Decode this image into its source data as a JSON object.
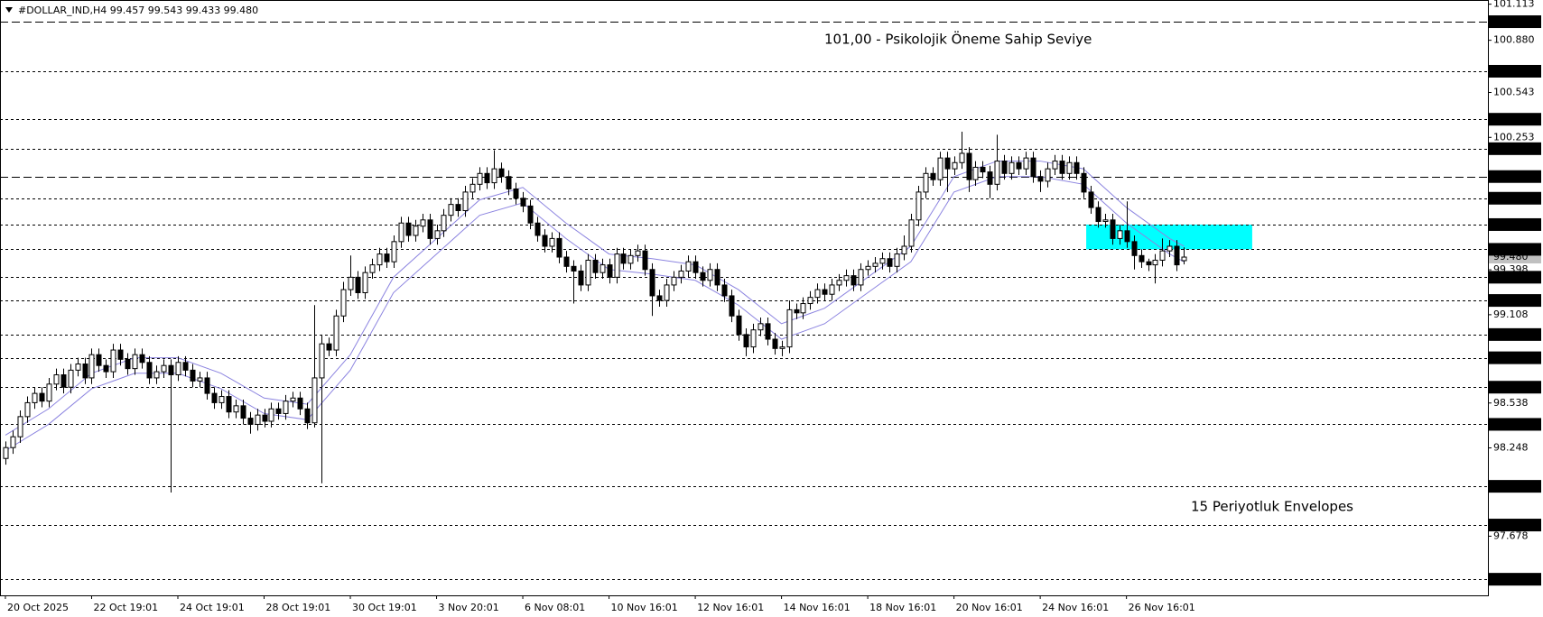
{
  "chart_data": {
    "type": "candlestick",
    "title": "#DOLLAR_IND,H4  99.457 99.543 99.433 99.480",
    "annotations": [
      {
        "text": "101,00 -  Psikolojik Öneme Sahip Seviye",
        "color": "#1a1a8c"
      },
      {
        "text": "15 Periyotluk Envelopes",
        "color": "#4b4ba8"
      }
    ],
    "xlim": [
      -0.75,
      206.3
    ],
    "ylim": [
      97.296,
      101.14
    ],
    "xticks": [
      {
        "value": 0,
        "label": "20 Oct 2025"
      },
      {
        "value": 12,
        "label": "22 Oct 19:01"
      },
      {
        "value": 24,
        "label": "24 Oct 19:01"
      },
      {
        "value": 36,
        "label": "28 Oct 19:01"
      },
      {
        "value": 48,
        "label": "30 Oct 19:01"
      },
      {
        "value": 60,
        "label": "3 Nov 20:01"
      },
      {
        "value": 72,
        "label": "6 Nov 08:01"
      },
      {
        "value": 84,
        "label": "10 Nov 16:01"
      },
      {
        "value": 96,
        "label": "12 Nov 16:01"
      },
      {
        "value": 108,
        "label": "14 Nov 16:01"
      },
      {
        "value": 120,
        "label": "18 Nov 16:01"
      },
      {
        "value": 132,
        "label": "20 Nov 16:01"
      },
      {
        "value": 144,
        "label": "24 Nov 16:01"
      },
      {
        "value": 156,
        "label": "26 Nov 16:01"
      }
    ],
    "yticks": [
      {
        "value": 101.113,
        "label": "101.113"
      },
      {
        "value": 100.88,
        "label": "100.880"
      },
      {
        "value": 100.543,
        "label": "100.543"
      },
      {
        "value": 100.253,
        "label": "100.253"
      },
      {
        "value": 99.398,
        "label": "99.398"
      },
      {
        "value": 99.108,
        "label": "99.108"
      },
      {
        "value": 98.538,
        "label": "98.538"
      },
      {
        "value": 98.248,
        "label": "98.248"
      },
      {
        "value": 97.678,
        "label": "97.678"
      }
    ],
    "levels": [
      {
        "value": 101,
        "label": "101.000",
        "dash": "long"
      },
      {
        "value": 100.68,
        "label": "100.680",
        "dash": "short"
      },
      {
        "value": 100.37,
        "label": "100.370",
        "dash": "short"
      },
      {
        "value": 100.18,
        "label": "100.180",
        "dash": "short"
      },
      {
        "value": 100,
        "label": "100.000",
        "dash": "long"
      },
      {
        "value": 99.86,
        "label": "99.860",
        "dash": "short"
      },
      {
        "value": 99.69,
        "label": "99.690",
        "dash": "short"
      },
      {
        "value": 99.53,
        "label": "99.530",
        "dash": "short"
      },
      {
        "value": 99.35,
        "label": "99.350",
        "dash": "short"
      },
      {
        "value": 99.2,
        "label": "99.200",
        "dash": "short"
      },
      {
        "value": 98.98,
        "label": "98.980",
        "dash": "short"
      },
      {
        "value": 98.83,
        "label": "98.830",
        "dash": "short"
      },
      {
        "value": 98.64,
        "label": "98.640",
        "dash": "short"
      },
      {
        "value": 98.4,
        "label": "98.400",
        "dash": "short"
      },
      {
        "value": 98,
        "label": "98.000",
        "dash": "short"
      },
      {
        "value": 97.75,
        "label": "97.750",
        "dash": "short"
      },
      {
        "value": 97.4,
        "label": "97.400",
        "dash": "short"
      }
    ],
    "last_price": {
      "value": 99.48,
      "label": "99.480",
      "color": "#c0c0c0"
    },
    "zone": {
      "from": 150.4,
      "to": 173.5,
      "top": 99.69,
      "bottom": 99.53,
      "color": "#00ffff"
    },
    "up_color": "#ffffff",
    "down_color": "#000000",
    "open": [
      98.18,
      98.25,
      98.32,
      98.45,
      98.54,
      98.6,
      98.55,
      98.66,
      98.72,
      98.64,
      98.75,
      98.79,
      98.7,
      98.85,
      98.78,
      98.74,
      98.88,
      98.82,
      98.76,
      98.85,
      98.8,
      98.7,
      98.74,
      98.78,
      98.72,
      98.8,
      98.75,
      98.68,
      98.7,
      98.6,
      98.54,
      98.58,
      98.48,
      98.52,
      98.44,
      98.4,
      98.46,
      98.42,
      98.5,
      98.47,
      98.55,
      98.57,
      98.5,
      98.41,
      98.7,
      98.92,
      98.88,
      99.1,
      99.27,
      99.35,
      99.25,
      99.38,
      99.43,
      99.5,
      99.45,
      99.58,
      99.7,
      99.62,
      99.68,
      99.72,
      99.6,
      99.65,
      99.75,
      99.82,
      99.78,
      99.9,
      99.95,
      100.02,
      99.96,
      100.05,
      100.0,
      99.92,
      99.86,
      99.81,
      99.7,
      99.62,
      99.55,
      99.6,
      99.48,
      99.42,
      99.39,
      99.3,
      99.46,
      99.38,
      99.43,
      99.35,
      99.5,
      99.44,
      99.49,
      99.52,
      99.4,
      99.23,
      99.2,
      99.3,
      99.35,
      99.39,
      99.45,
      99.38,
      99.33,
      99.4,
      99.3,
      99.23,
      99.1,
      98.98,
      98.9,
      99.01,
      99.05,
      98.95,
      98.89,
      98.9,
      99.14,
      99.12,
      99.18,
      99.22,
      99.27,
      99.24,
      99.3,
      99.33,
      99.36,
      99.3,
      99.4,
      99.42,
      99.44,
      99.47,
      99.42,
      99.5,
      99.55,
      99.72,
      99.9,
      100.02,
      99.98,
      100.12,
      100.05,
      100.09,
      100.15,
      99.98,
      100.06,
      100.03,
      99.95,
      100.1,
      100.02,
      100.09,
      100.05,
      100.12,
      100.0,
      99.97,
      100.05,
      100.1,
      100.02,
      100.09,
      100.02,
      99.9,
      99.8,
      99.71,
      99.72,
      99.6,
      99.65,
      99.58,
      99.49,
      99.45,
      99.43,
      99.46,
      99.52,
      99.55,
      99.457
    ],
    "high": [
      98.29,
      98.36,
      98.49,
      98.58,
      98.64,
      98.64,
      98.7,
      98.76,
      98.76,
      98.79,
      98.83,
      98.83,
      98.89,
      98.89,
      98.82,
      98.92,
      98.92,
      98.86,
      98.89,
      98.89,
      98.84,
      98.78,
      98.82,
      98.82,
      98.84,
      98.84,
      98.79,
      98.74,
      98.74,
      98.64,
      98.62,
      98.62,
      98.56,
      98.56,
      98.48,
      98.5,
      98.5,
      98.54,
      98.54,
      98.59,
      98.61,
      98.61,
      98.54,
      99.17,
      98.98,
      98.96,
      99.14,
      99.32,
      99.49,
      99.39,
      99.42,
      99.47,
      99.54,
      99.54,
      99.62,
      99.74,
      99.74,
      99.72,
      99.76,
      99.76,
      99.69,
      99.79,
      99.86,
      99.86,
      99.94,
      99.99,
      100.06,
      100.06,
      100.17,
      100.09,
      100.04,
      99.96,
      99.9,
      99.85,
      99.74,
      99.66,
      99.64,
      99.64,
      99.52,
      99.46,
      99.43,
      99.5,
      99.5,
      99.47,
      99.47,
      99.54,
      99.54,
      99.53,
      99.56,
      99.56,
      99.44,
      99.27,
      99.34,
      99.39,
      99.43,
      99.49,
      99.49,
      99.42,
      99.44,
      99.44,
      99.34,
      99.27,
      99.14,
      99.02,
      99.05,
      99.09,
      99.09,
      98.99,
      98.94,
      99.2,
      99.18,
      99.22,
      99.26,
      99.31,
      99.31,
      99.34,
      99.37,
      99.4,
      99.4,
      99.44,
      99.46,
      99.48,
      99.51,
      99.51,
      99.54,
      99.62,
      99.76,
      99.94,
      100.06,
      100.06,
      100.16,
      100.16,
      100.13,
      100.29,
      100.19,
      100.1,
      100.1,
      100.07,
      100.27,
      100.14,
      100.13,
      100.13,
      100.16,
      100.16,
      100.04,
      100.09,
      100.14,
      100.14,
      100.13,
      100.13,
      100.06,
      99.94,
      99.84,
      99.76,
      99.76,
      99.69,
      99.84,
      99.62,
      99.53,
      99.47,
      99.5,
      99.6,
      99.59,
      99.59,
      99.543
    ],
    "low": [
      98.14,
      98.21,
      98.28,
      98.41,
      98.5,
      98.51,
      98.51,
      98.62,
      98.6,
      98.6,
      98.71,
      98.66,
      98.66,
      98.74,
      98.7,
      98.7,
      98.78,
      98.72,
      98.72,
      98.76,
      98.66,
      98.66,
      98.7,
      97.96,
      98.68,
      98.71,
      98.64,
      98.64,
      98.56,
      98.5,
      98.5,
      98.44,
      98.44,
      98.4,
      98.34,
      98.36,
      98.38,
      98.38,
      98.43,
      98.43,
      98.51,
      98.46,
      98.37,
      98.38,
      98.02,
      98.84,
      98.84,
      99.06,
      99.23,
      99.21,
      99.21,
      99.34,
      99.39,
      99.41,
      99.41,
      99.54,
      99.58,
      99.58,
      99.64,
      99.56,
      99.56,
      99.61,
      99.71,
      99.74,
      99.74,
      99.86,
      99.91,
      99.92,
      99.92,
      99.96,
      99.88,
      99.82,
      99.77,
      99.66,
      99.58,
      99.51,
      99.51,
      99.44,
      99.38,
      99.18,
      99.26,
      99.26,
      99.34,
      99.34,
      99.31,
      99.31,
      99.4,
      99.4,
      99.45,
      99.36,
      99.1,
      99.16,
      99.16,
      99.26,
      99.31,
      99.35,
      99.34,
      99.29,
      99.29,
      99.26,
      99.19,
      99.06,
      98.94,
      98.84,
      98.86,
      98.97,
      98.91,
      98.85,
      98.84,
      98.86,
      99.08,
      99.08,
      99.14,
      99.18,
      99.2,
      99.2,
      99.26,
      99.29,
      99.26,
      99.26,
      99.36,
      99.38,
      99.4,
      99.38,
      99.38,
      99.46,
      99.51,
      99.68,
      99.86,
      99.94,
      99.94,
      99.9,
      100.01,
      100.05,
      99.9,
      99.94,
      99.99,
      99.86,
      99.91,
      99.98,
      99.98,
      100.01,
      100.01,
      99.96,
      99.9,
      99.93,
      100.01,
      99.98,
      99.98,
      99.98,
      99.86,
      99.76,
      99.67,
      99.67,
      99.56,
      99.56,
      99.54,
      99.4,
      99.41,
      99.39,
      99.31,
      99.42,
      99.48,
      99.39,
      99.433
    ],
    "close": [
      98.25,
      98.32,
      98.45,
      98.54,
      98.6,
      98.55,
      98.66,
      98.72,
      98.64,
      98.75,
      98.79,
      98.7,
      98.85,
      98.78,
      98.74,
      98.88,
      98.82,
      98.76,
      98.85,
      98.8,
      98.7,
      98.74,
      98.78,
      98.72,
      98.8,
      98.75,
      98.68,
      98.7,
      98.6,
      98.54,
      98.58,
      98.48,
      98.52,
      98.44,
      98.4,
      98.46,
      98.42,
      98.5,
      98.47,
      98.55,
      98.57,
      98.5,
      98.41,
      98.7,
      98.92,
      98.88,
      99.1,
      99.27,
      99.35,
      99.25,
      99.38,
      99.43,
      99.5,
      99.45,
      99.58,
      99.7,
      99.62,
      99.68,
      99.72,
      99.6,
      99.65,
      99.75,
      99.82,
      99.78,
      99.9,
      99.95,
      100.02,
      99.96,
      100.05,
      100.0,
      99.92,
      99.86,
      99.81,
      99.7,
      99.62,
      99.55,
      99.6,
      99.48,
      99.42,
      99.39,
      99.3,
      99.46,
      99.38,
      99.43,
      99.35,
      99.5,
      99.44,
      99.49,
      99.52,
      99.4,
      99.23,
      99.2,
      99.3,
      99.35,
      99.39,
      99.45,
      99.38,
      99.33,
      99.4,
      99.3,
      99.23,
      99.1,
      98.98,
      98.9,
      99.01,
      99.05,
      98.95,
      98.89,
      98.9,
      99.14,
      99.12,
      99.18,
      99.22,
      99.27,
      99.24,
      99.3,
      99.33,
      99.36,
      99.3,
      99.4,
      99.42,
      99.44,
      99.47,
      99.42,
      99.5,
      99.55,
      99.72,
      99.9,
      100.02,
      99.98,
      100.12,
      100.05,
      100.09,
      100.15,
      99.98,
      100.06,
      100.03,
      99.95,
      100.1,
      100.02,
      100.09,
      100.05,
      100.12,
      100.0,
      99.97,
      100.05,
      100.1,
      100.02,
      100.09,
      100.02,
      99.9,
      99.8,
      99.71,
      99.72,
      99.6,
      99.65,
      99.58,
      99.49,
      99.45,
      99.43,
      99.46,
      99.52,
      99.55,
      99.43,
      99.48
    ],
    "envelopes": {
      "color": "#8c84e0",
      "x": [
        0,
        6,
        12,
        18,
        24,
        30,
        36,
        42,
        48,
        54,
        60,
        66,
        72,
        78,
        84,
        90,
        96,
        102,
        108,
        114,
        120,
        126,
        132,
        138,
        144,
        150,
        156,
        162,
        164
      ],
      "upper": [
        98.33,
        98.5,
        98.73,
        98.83,
        98.83,
        98.73,
        98.57,
        98.53,
        98.85,
        99.35,
        99.6,
        99.85,
        99.93,
        99.7,
        99.5,
        99.47,
        99.43,
        99.27,
        99.05,
        99.15,
        99.35,
        99.55,
        100.0,
        100.1,
        100.1,
        100.05,
        99.8,
        99.6,
        99.55
      ],
      "lower": [
        98.23,
        98.4,
        98.63,
        98.73,
        98.73,
        98.63,
        98.47,
        98.43,
        98.75,
        99.25,
        99.5,
        99.75,
        99.83,
        99.6,
        99.4,
        99.37,
        99.33,
        99.17,
        98.95,
        99.05,
        99.25,
        99.45,
        99.9,
        100.0,
        100.0,
        99.95,
        99.7,
        99.5,
        99.45
      ]
    }
  }
}
